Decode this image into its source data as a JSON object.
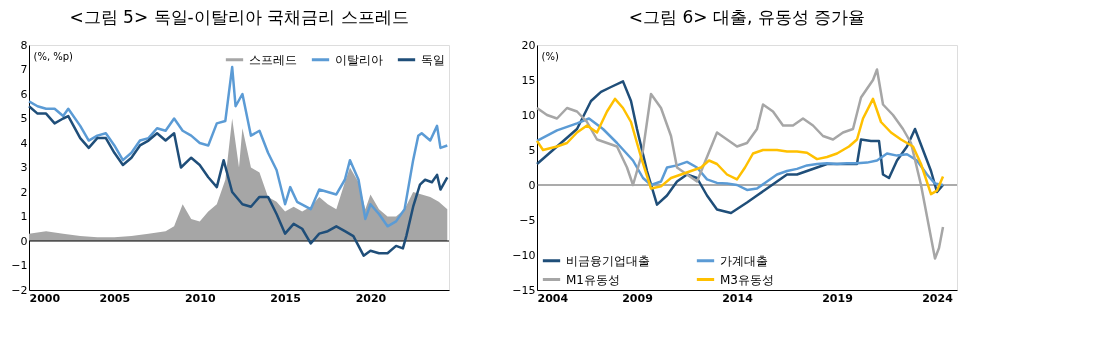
{
  "chart_data": [
    {
      "type": "line",
      "title": "<그림 5> 독일-이탈리아 국채금리 스프레드",
      "ylabel": "(%, %p)",
      "xlim": [
        2000,
        2024.6
      ],
      "xticks": [
        2000,
        2005,
        2010,
        2015,
        2020
      ],
      "ylim": [
        -2,
        8
      ],
      "yticks": [
        -2,
        -1,
        0,
        1,
        2,
        3,
        4,
        5,
        6,
        7,
        8
      ],
      "grid": false,
      "legend": "top right",
      "marker": "none",
      "line_style": "solid",
      "ref_lines": [
        {
          "axis": "y",
          "value": 0,
          "color": "#000000"
        }
      ],
      "series": [
        {
          "name": "스프레드",
          "type": "area",
          "color": "#a6a6a6",
          "x": [
            2000,
            2001,
            2002,
            2003,
            2004,
            2005,
            2006,
            2007,
            2008,
            2008.5,
            2009,
            2009.5,
            2010,
            2010.5,
            2011,
            2011.5,
            2011.9,
            2012.3,
            2012.5,
            2013,
            2013.5,
            2014,
            2014.5,
            2015,
            2015.5,
            2016,
            2016.5,
            2017,
            2017.5,
            2018,
            2018.5,
            2018.8,
            2019.3,
            2019.7,
            2020,
            2020.5,
            2021,
            2021.5,
            2022,
            2022.5,
            2023,
            2023.5,
            2024,
            2024.5
          ],
          "values": [
            0.3,
            0.4,
            0.3,
            0.2,
            0.15,
            0.15,
            0.2,
            0.3,
            0.4,
            0.6,
            1.5,
            0.9,
            0.8,
            1.2,
            1.5,
            2.5,
            5.0,
            3.0,
            4.6,
            3.0,
            2.8,
            1.8,
            1.6,
            1.2,
            1.4,
            1.2,
            1.4,
            1.8,
            1.5,
            1.3,
            2.4,
            3.0,
            2.4,
            1.3,
            1.9,
            1.3,
            1.0,
            1.0,
            1.3,
            2.0,
            1.9,
            1.8,
            1.6,
            1.3
          ]
        },
        {
          "name": "이탈리아",
          "color": "#5b9bd5",
          "x": [
            2000,
            2000.5,
            2001,
            2001.5,
            2002,
            2002.3,
            2003,
            2003.5,
            2004,
            2004.5,
            2005,
            2005.5,
            2006,
            2006.5,
            2007,
            2007.5,
            2008,
            2008.5,
            2009,
            2009.5,
            2010,
            2010.5,
            2011,
            2011.5,
            2011.9,
            2012.1,
            2012.5,
            2013,
            2013.5,
            2014,
            2014.5,
            2015,
            2015.3,
            2015.7,
            2016.5,
            2017,
            2017.5,
            2018,
            2018.5,
            2018.8,
            2019.3,
            2019.7,
            2020,
            2020.5,
            2021,
            2021.5,
            2022,
            2022.5,
            2022.8,
            2023,
            2023.5,
            2023.9,
            2024.1,
            2024.5
          ],
          "values": [
            5.7,
            5.5,
            5.4,
            5.4,
            5.1,
            5.4,
            4.7,
            4.1,
            4.3,
            4.4,
            3.9,
            3.3,
            3.6,
            4.1,
            4.2,
            4.6,
            4.5,
            5.0,
            4.5,
            4.3,
            4.0,
            3.9,
            4.8,
            4.9,
            7.1,
            5.5,
            6.0,
            4.3,
            4.5,
            3.6,
            2.9,
            1.5,
            2.2,
            1.6,
            1.3,
            2.1,
            2.0,
            1.9,
            2.5,
            3.3,
            2.5,
            0.9,
            1.5,
            1.1,
            0.6,
            0.8,
            1.3,
            3.3,
            4.3,
            4.4,
            4.1,
            4.7,
            3.8,
            3.9
          ]
        },
        {
          "name": "독일",
          "color": "#1f4e79",
          "x": [
            2000,
            2000.5,
            2001,
            2001.5,
            2002,
            2002.3,
            2003,
            2003.5,
            2004,
            2004.5,
            2005,
            2005.5,
            2006,
            2006.5,
            2007,
            2007.5,
            2008,
            2008.5,
            2008.9,
            2009.5,
            2010,
            2010.5,
            2011,
            2011.4,
            2011.9,
            2012.5,
            2013,
            2013.5,
            2014,
            2014.5,
            2015,
            2015.5,
            2016,
            2016.5,
            2017,
            2017.5,
            2018,
            2018.5,
            2019,
            2019.6,
            2020,
            2020.5,
            2021,
            2021.5,
            2021.9,
            2022.1,
            2022.5,
            2022.9,
            2023.2,
            2023.6,
            2023.9,
            2024.1,
            2024.5
          ],
          "values": [
            5.5,
            5.2,
            5.2,
            4.8,
            5.0,
            5.1,
            4.2,
            3.8,
            4.2,
            4.2,
            3.6,
            3.1,
            3.4,
            3.9,
            4.1,
            4.4,
            4.1,
            4.4,
            3.0,
            3.4,
            3.1,
            2.6,
            2.2,
            3.3,
            2.0,
            1.5,
            1.4,
            1.8,
            1.8,
            1.1,
            0.3,
            0.7,
            0.5,
            -0.1,
            0.3,
            0.4,
            0.6,
            0.4,
            0.2,
            -0.6,
            -0.4,
            -0.5,
            -0.5,
            -0.2,
            -0.3,
            0.2,
            1.4,
            2.3,
            2.5,
            2.4,
            2.7,
            2.1,
            2.6
          ]
        }
      ]
    },
    {
      "type": "line",
      "title": "<그림 6> 대출, 유동성 증가율",
      "ylabel": "(%)",
      "xlim": [
        2004,
        2025
      ],
      "xticks": [
        2004,
        2009,
        2014,
        2019,
        2024
      ],
      "ylim": [
        -15,
        20
      ],
      "yticks": [
        -15,
        -10,
        -5,
        0,
        5,
        10,
        15,
        20
      ],
      "grid": false,
      "legend": "bottom left",
      "marker": "none",
      "line_style": "solid",
      "ref_lines": [
        {
          "axis": "y",
          "value": 0,
          "color": "#595959"
        }
      ],
      "series": [
        {
          "name": "비금융기업대출",
          "color": "#1f4e79",
          "x": [
            2004,
            2005,
            2006,
            2006.7,
            2007.2,
            2007.7,
            2008.3,
            2008.7,
            2009,
            2009.5,
            2010,
            2010.5,
            2011,
            2011.5,
            2012,
            2012.5,
            2013,
            2013.7,
            2014.5,
            2015,
            2015.5,
            2016,
            2016.5,
            2017,
            2017.5,
            2018,
            2018.5,
            2019,
            2019.5,
            2020,
            2020.2,
            2020.7,
            2021.1,
            2021.3,
            2021.6,
            2022,
            2022.5,
            2022.9,
            2023.3,
            2023.7,
            2024,
            2024.3
          ],
          "values": [
            3,
            5.5,
            8,
            12,
            13.3,
            14,
            14.8,
            12,
            8,
            2,
            -2.8,
            -1.5,
            0.5,
            1.5,
            1,
            -1.5,
            -3.5,
            -4,
            -2.5,
            -1.5,
            -0.5,
            0.5,
            1.5,
            1.5,
            2,
            2.5,
            3,
            3,
            3,
            3,
            6.5,
            6.3,
            6.3,
            1.5,
            1,
            3.5,
            5.5,
            8,
            5,
            2,
            -1,
            0
          ]
        },
        {
          "name": "가계대출",
          "color": "#5b9bd5",
          "x": [
            2004,
            2005,
            2006,
            2006.6,
            2007.3,
            2008,
            2008.8,
            2009.3,
            2009.7,
            2010.2,
            2010.5,
            2011,
            2011.5,
            2012,
            2012.5,
            2013,
            2013.5,
            2014,
            2014.5,
            2015,
            2015.5,
            2016,
            2016.5,
            2017,
            2017.5,
            2018,
            2018.5,
            2019,
            2019.5,
            2020,
            2020.5,
            2021,
            2021.5,
            2022,
            2022.5,
            2023,
            2023.5,
            2023.9,
            2024.3
          ],
          "values": [
            6.3,
            7.8,
            8.8,
            9.5,
            8,
            6,
            3.5,
            1,
            0,
            0.5,
            2.5,
            2.8,
            3.3,
            2.5,
            0.8,
            0.3,
            0.2,
            0,
            -0.7,
            -0.5,
            0.5,
            1.5,
            2,
            2.3,
            2.8,
            3,
            3.1,
            3,
            3.1,
            3.1,
            3.2,
            3.5,
            4.5,
            4.2,
            4.4,
            3.5,
            1.5,
            0.2,
            0
          ]
        },
        {
          "name": "M1유동성",
          "color": "#a6a6a6",
          "x": [
            2004,
            2004.5,
            2005,
            2005.5,
            2006,
            2006.5,
            2007,
            2007.5,
            2008,
            2008.5,
            2008.8,
            2009.3,
            2009.7,
            2010.2,
            2010.7,
            2011,
            2011.5,
            2012,
            2012.5,
            2013,
            2013.5,
            2014,
            2014.5,
            2015,
            2015.3,
            2015.8,
            2016.3,
            2016.8,
            2017.3,
            2017.8,
            2018.3,
            2018.8,
            2019.3,
            2019.8,
            2020.2,
            2020.8,
            2021,
            2021.3,
            2021.8,
            2022.3,
            2022.7,
            2023.2,
            2023.6,
            2023.9,
            2024.1,
            2024.3
          ],
          "values": [
            11,
            10,
            9.5,
            11,
            10.5,
            9,
            6.5,
            6,
            5.5,
            2.5,
            0,
            5,
            13,
            11,
            7,
            2.5,
            1.5,
            0.5,
            4,
            7.5,
            6.5,
            5.5,
            6,
            8,
            11.5,
            10.5,
            8.5,
            8.5,
            9.5,
            8.5,
            7,
            6.5,
            7.5,
            8,
            12.5,
            15,
            16.5,
            11.5,
            10,
            8,
            6,
            0,
            -6,
            -10.5,
            -9,
            -6
          ]
        },
        {
          "name": "M3유동성",
          "color": "#ffc000",
          "x": [
            2004,
            2004.3,
            2005,
            2005.5,
            2006,
            2006.5,
            2007,
            2007.5,
            2007.9,
            2008.3,
            2008.7,
            2009.2,
            2009.7,
            2010.2,
            2010.7,
            2011.2,
            2011.7,
            2012.2,
            2012.6,
            2013,
            2013.5,
            2014,
            2014.4,
            2014.8,
            2015.3,
            2016,
            2016.5,
            2017,
            2017.5,
            2018,
            2018.5,
            2019,
            2019.6,
            2020,
            2020.3,
            2020.8,
            2021.2,
            2021.7,
            2022.2,
            2022.8,
            2023.2,
            2023.7,
            2024,
            2024.3
          ],
          "values": [
            6.3,
            5,
            5.5,
            6,
            7.5,
            8.5,
            7.5,
            10.5,
            12.3,
            11,
            9,
            4,
            -0.5,
            -0.2,
            1,
            1.5,
            2,
            2.5,
            3.5,
            3,
            1.5,
            0.8,
            2.5,
            4.5,
            5,
            5,
            4.8,
            4.8,
            4.6,
            3.7,
            4,
            4.5,
            5.5,
            6.5,
            9.5,
            12.3,
            9,
            7.5,
            6.5,
            5.5,
            3,
            -1.3,
            -0.8,
            1.2
          ]
        }
      ]
    }
  ]
}
